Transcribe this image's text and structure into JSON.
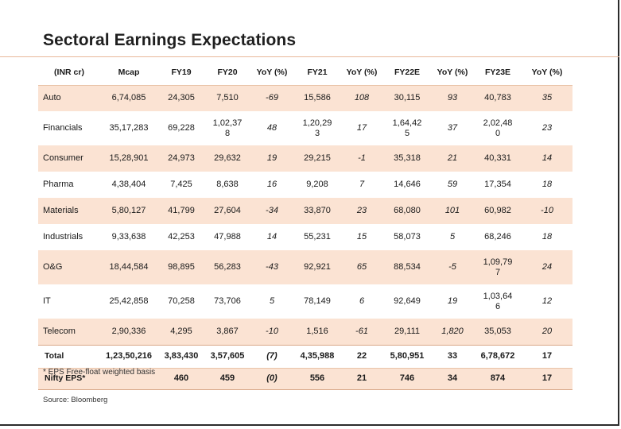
{
  "title": "Sectoral Earnings Expectations",
  "columns": [
    "(INR cr)",
    "Mcap",
    "FY19",
    "FY20",
    "YoY (%)",
    "FY21",
    "YoY (%)",
    "FY22E",
    "YoY (%)",
    "FY23E",
    "YoY (%)"
  ],
  "rows": [
    {
      "sector": "Auto",
      "mcap": "6,74,085",
      "fy19": "24,305",
      "fy20": "7,510",
      "yoy20": "-69",
      "fy21": "15,586",
      "yoy21": "108",
      "fy22": "30,115",
      "yoy22": "93",
      "fy23": "40,783",
      "yoy23": "35"
    },
    {
      "sector": "Financials",
      "mcap": "35,17,283",
      "fy19": "69,228",
      "fy20": "1,02,37\n8",
      "yoy20": "48",
      "fy21": "1,20,29\n3",
      "yoy21": "17",
      "fy22": "1,64,42\n5",
      "yoy22": "37",
      "fy23": "2,02,48\n0",
      "yoy23": "23"
    },
    {
      "sector": "Consumer",
      "mcap": "15,28,901",
      "fy19": "24,973",
      "fy20": "29,632",
      "yoy20": "19",
      "fy21": "29,215",
      "yoy21": "-1",
      "fy22": "35,318",
      "yoy22": "21",
      "fy23": "40,331",
      "yoy23": "14"
    },
    {
      "sector": "Pharma",
      "mcap": "4,38,404",
      "fy19": "7,425",
      "fy20": "8,638",
      "yoy20": "16",
      "fy21": "9,208",
      "yoy21": "7",
      "fy22": "14,646",
      "yoy22": "59",
      "fy23": "17,354",
      "yoy23": "18"
    },
    {
      "sector": "Materials",
      "mcap": "5,80,127",
      "fy19": "41,799",
      "fy20": "27,604",
      "yoy20": "-34",
      "fy21": "33,870",
      "yoy21": "23",
      "fy22": "68,080",
      "yoy22": "101",
      "fy23": "60,982",
      "yoy23": "-10"
    },
    {
      "sector": "Industrials",
      "mcap": "9,33,638",
      "fy19": "42,253",
      "fy20": "47,988",
      "yoy20": "14",
      "fy21": "55,231",
      "yoy21": "15",
      "fy22": "58,073",
      "yoy22": "5",
      "fy23": "68,246",
      "yoy23": "18"
    },
    {
      "sector": "O&G",
      "mcap": "18,44,584",
      "fy19": "98,895",
      "fy20": "56,283",
      "yoy20": "-43",
      "fy21": "92,921",
      "yoy21": "65",
      "fy22": "88,534",
      "yoy22": "-5",
      "fy23": "1,09,79\n7",
      "yoy23": "24"
    },
    {
      "sector": "IT",
      "mcap": "25,42,858",
      "fy19": "70,258",
      "fy20": "73,706",
      "yoy20": "5",
      "fy21": "78,149",
      "yoy21": "6",
      "fy22": "92,649",
      "yoy22": "19",
      "fy23": "1,03,64\n6",
      "yoy23": "12"
    },
    {
      "sector": "Telecom",
      "mcap": "2,90,336",
      "fy19": "4,295",
      "fy20": "3,867",
      "yoy20": "-10",
      "fy21": "1,516",
      "yoy21": "-61",
      "fy22": "29,111",
      "yoy22": "1,820",
      "fy23": "35,053",
      "yoy23": "20"
    }
  ],
  "total": {
    "sector": "Total",
    "mcap": "1,23,50,216",
    "fy19": "3,83,430",
    "fy20": "3,57,605",
    "yoy20": "(7)",
    "fy21": "4,35,988",
    "yoy21": "22",
    "fy22": "5,80,951",
    "yoy22": "33",
    "fy23": "6,78,672",
    "yoy23": "17"
  },
  "eps": {
    "sector": "Nifty EPS*",
    "mcap": "",
    "fy19": "460",
    "fy20": "459",
    "yoy20": "(0)",
    "fy21": "556",
    "yoy21": "21",
    "fy22": "746",
    "yoy22": "34",
    "fy23": "874",
    "yoy23": "17"
  },
  "footnote": "* EPS Free-float weighted basis",
  "source": "Source: Bloomberg"
}
